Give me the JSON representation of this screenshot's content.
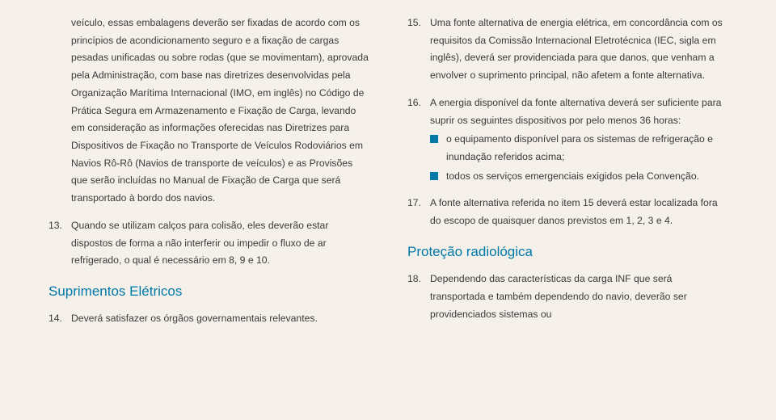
{
  "left": {
    "intro": "veículo, essas embalagens deverão ser fixadas de acordo com os princípios de acondicionamento seguro e a fixação de cargas pesadas unificadas ou sobre rodas (que se movimentam), aprovada pela Administração, com base nas diretrizes desenvolvidas pela Organização Marítima Internacional (IMO, em inglês) no Código de Prática Segura em Armazenamento e Fixação de Carga, levando em consideração as informações oferecidas nas Diretrizes para Dispositivos de Fixação no Transporte de Veículos Rodoviários em Navios Rô-Rô (Navios de transporte de veículos) e as Provisões que serão incluídas no Manual de Fixação de Carga que será transportado à bordo dos navios.",
    "item13_num": "13.",
    "item13": "Quando se utilizam calços para colisão, eles deverão estar dispostos de forma a não interferir ou impedir o fluxo de ar refrigerado, o qual é necessário em 8, 9 e 10.",
    "heading1": "Suprimentos Elétricos",
    "item14_num": "14.",
    "item14": "Deverá satisfazer os órgãos governamentais relevantes."
  },
  "right": {
    "item15_num": "15.",
    "item15": "Uma fonte alternativa de energia elétrica, em concordância com os requisitos da Comissão Internacional Eletrotécnica (IEC, sigla em inglês), deverá ser providenciada para que danos, que venham a envolver o suprimento principal, não afetem a fonte alternativa.",
    "item16_num": "16.",
    "item16_intro": "A energia disponível da fonte alternativa deverá ser suficiente para suprir os seguintes dispositivos por pelo menos 36 horas:",
    "item16_b1": "o equipamento disponível para os sistemas de refrigeração e inundação referidos acima;",
    "item16_b2": "todos os serviços emergenciais exigidos pela Convenção.",
    "item17_num": "17.",
    "item17": "A fonte alternativa referida no item 15 deverá estar localizada fora do escopo de quaisquer danos previstos em 1, 2, 3 e 4.",
    "heading2": "Proteção radiológica",
    "item18_num": "18.",
    "item18": "Dependendo das características da carga INF que será transportada e também dependendo do navio, deverão ser providenciados sistemas ou"
  }
}
